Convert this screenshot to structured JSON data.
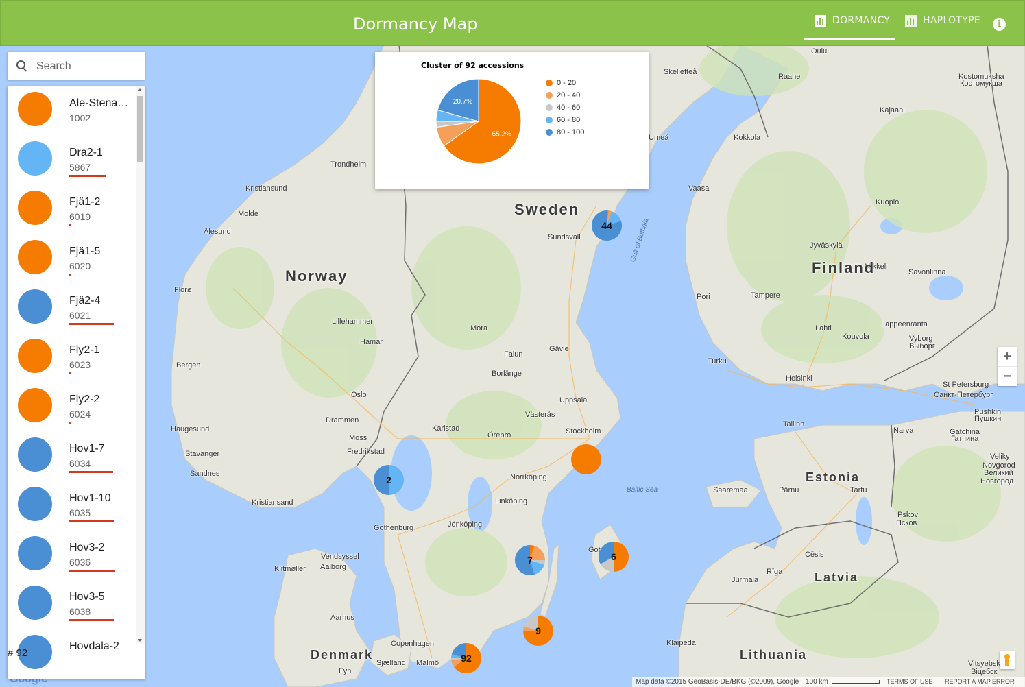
{
  "header": {
    "title": "Dormancy Map",
    "tabs": [
      {
        "label": "DORMANCY",
        "icon": "bar-chart-icon",
        "active": true
      },
      {
        "label": "HAPLOTYPE",
        "icon": "bar-chart-icon",
        "active": false
      }
    ],
    "info_icon": "info-icon",
    "bar_color": "#8bc34a"
  },
  "search": {
    "placeholder": "Search",
    "icon": "search-icon"
  },
  "accessions": [
    {
      "name": "Ale-Stena…",
      "code": "1002",
      "color": "#f57c00",
      "bar": 0
    },
    {
      "name": "Dra2-1",
      "code": "5867",
      "color": "#64b5f6",
      "bar": 0.5
    },
    {
      "name": "Fjä1-2",
      "code": "6019",
      "color": "#f57c00",
      "bar": 0.02
    },
    {
      "name": "Fjä1-5",
      "code": "6020",
      "color": "#f57c00",
      "bar": 0.01
    },
    {
      "name": "Fjä2-4",
      "code": "6021",
      "color": "#4a8fd4",
      "bar": 0.6
    },
    {
      "name": "Fly2-1",
      "code": "6023",
      "color": "#f57c00",
      "bar": 0.02
    },
    {
      "name": "Fly2-2",
      "code": "6024",
      "color": "#f57c00",
      "bar": 0.01
    },
    {
      "name": "Hov1-7",
      "code": "6034",
      "color": "#4a8fd4",
      "bar": 0.59
    },
    {
      "name": "Hov1-10",
      "code": "6035",
      "color": "#4a8fd4",
      "bar": 0.6
    },
    {
      "name": "Hov3-2",
      "code": "6036",
      "color": "#4a8fd4",
      "bar": 0.62
    },
    {
      "name": "Hov3-5",
      "code": "6038",
      "color": "#4a8fd4",
      "bar": 0.6
    },
    {
      "name": "Hovdala-2",
      "code": "",
      "color": "#4a8fd4",
      "bar": 0
    }
  ],
  "count_label": "# 92",
  "popup": {
    "title": "Cluster of 92 accessions",
    "legend": [
      {
        "label": "0 - 20",
        "color": "#f57c00"
      },
      {
        "label": "20 - 40",
        "color": "#f5a05a"
      },
      {
        "label": "40 - 60",
        "color": "#c8c8c8"
      },
      {
        "label": "60 - 80",
        "color": "#64b5f6"
      },
      {
        "label": "80 - 100",
        "color": "#4a8fd4"
      }
    ]
  },
  "chart_data": {
    "type": "pie",
    "title": "Cluster of 92 accessions",
    "categories": [
      "0 - 20",
      "20 - 40",
      "40 - 60",
      "60 - 80",
      "80 - 100"
    ],
    "values": [
      65.2,
      7.6,
      2.2,
      4.3,
      20.7
    ],
    "value_labels": [
      "65.2%",
      "",
      "",
      "",
      "20.7%"
    ]
  },
  "clusters": [
    {
      "label": "44",
      "fractions": [
        0.02,
        0.03,
        0,
        0.15,
        0.8
      ]
    },
    {
      "label": "",
      "fractions": [
        1,
        0,
        0,
        0,
        0
      ]
    },
    {
      "label": "2",
      "fractions": [
        0,
        0,
        0,
        0.5,
        0.5
      ]
    },
    {
      "label": "7",
      "fractions": [
        0.05,
        0.2,
        0.05,
        0.15,
        0.55
      ]
    },
    {
      "label": "6",
      "fractions": [
        0.5,
        0,
        0.17,
        0,
        0.33
      ]
    },
    {
      "label": "9",
      "fractions": [
        0.75,
        0.05,
        0.2,
        0,
        0
      ]
    },
    {
      "label": "92",
      "fractions": [
        0.652,
        0.076,
        0.022,
        0.043,
        0.207
      ]
    }
  ],
  "map": {
    "countries": [
      "Norway",
      "Sweden",
      "Finland",
      "Estonia",
      "Latvia",
      "Denmark",
      "Lithuania"
    ],
    "cities": [
      "Oulu",
      "Skellefteå",
      "Raahe",
      "Kostomuksha",
      "Костомукша",
      "Kajaani",
      "Kokkola",
      "Umeå",
      "Trondheim",
      "Kristiansund",
      "Molde",
      "Ålesund",
      "Vaasa",
      "Kuopio",
      "Sundsvall",
      "Jyväskylä",
      "Mikkeli",
      "Savonlinna",
      "Florø",
      "Pori",
      "Tampere",
      "Lillehammer",
      "Mora",
      "Lappeenranta",
      "Lahti",
      "Kouvola",
      "Vyborg",
      "Выборг",
      "Hamar",
      "Falun",
      "Gävle",
      "Borlänge",
      "Bergen",
      "Turku",
      "Helsinki",
      "St Petersburg",
      "Санкт-Петербург",
      "Oslo",
      "Uppsala",
      "Drammen",
      "Västerås",
      "Pushkin",
      "Пушкин",
      "Haugesund",
      "Moss",
      "Karlstad",
      "Örebro",
      "Stockholm",
      "Tallinn",
      "Narva",
      "Gatchina",
      "Гатчина",
      "Stavanger",
      "Fredrikstad",
      "Sandnes",
      "Norrköping",
      "Veliky",
      "Novgorod",
      "Великий",
      "Новгород",
      "Linköping",
      "Saaremaa",
      "Pärnu",
      "Tartu",
      "Kristiansand",
      "Gothenburg",
      "Jönköping",
      "Pskov",
      "Псков",
      "Vendsyssel",
      "Cēsis",
      "Klitmøller",
      "Aalborg",
      "Rīga",
      "Jūrmala",
      "Aarhus",
      "Copenhagen",
      "Klaipeda",
      "Malmö",
      "Sjælland",
      "Vitsyebsk",
      "Віцебск",
      "Fyn",
      "Got"
    ],
    "seas": [
      "Gulf of Bothnia",
      "Baltic Sea"
    ],
    "attribution": "Map data ©2015 GeoBasis-DE/BKG (©2009), Google",
    "scale": "100 km",
    "terms": "TERMS OF USE",
    "report": "REPORT A MAP ERROR",
    "logo": "Google"
  }
}
